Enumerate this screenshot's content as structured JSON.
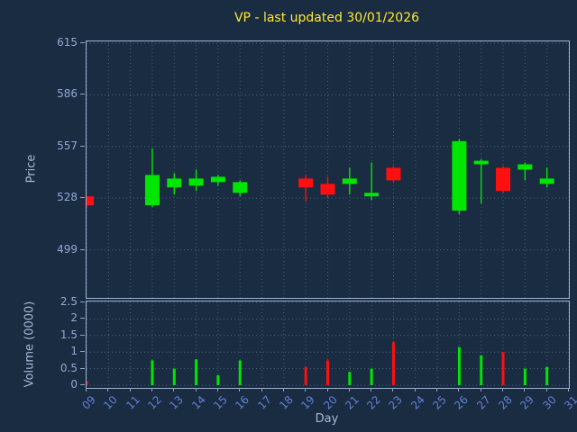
{
  "colors": {
    "background": "#1a2c42",
    "axis_frame": "#9cb2d2",
    "grid": "#47637f",
    "title": "#ffe92e",
    "y_tick_label": "#93a8d6",
    "x_tick_label": "#6080d8",
    "axis_title": "#a7b8d4",
    "candle_up": "#00e600",
    "candle_down": "#ff0f0f"
  },
  "chart_data": {
    "type": "candlestick",
    "title": "VP - last updated 30/01/2026",
    "xlabel": "Day",
    "price_ylabel": "Price",
    "volume_ylabel": "Volume (0000)",
    "x_tick_labels": [
      "09",
      "10",
      "11",
      "12",
      "13",
      "14",
      "15",
      "16",
      "17",
      "18",
      "19",
      "20",
      "21",
      "22",
      "23",
      "24",
      "25",
      "26",
      "27",
      "28",
      "29",
      "30",
      "31"
    ],
    "x_range": [
      9,
      31
    ],
    "price_ticks": [
      499,
      528,
      557,
      586,
      615
    ],
    "price_range": [
      472,
      616
    ],
    "volume_ticks": [
      0,
      0.5,
      1,
      1.5,
      2,
      2.5
    ],
    "volume_tick_labels": [
      "0",
      "0.5",
      "1",
      "1.5",
      "2",
      "2.5"
    ],
    "volume_range": [
      0,
      2.5
    ],
    "grid": "dotted",
    "candles": [
      {
        "day": 9,
        "open": 529,
        "high": 529,
        "low": 523,
        "close": 524,
        "volume": 0.12
      },
      {
        "day": 12,
        "open": 524,
        "high": 556,
        "low": 523,
        "close": 541,
        "volume": 0.75
      },
      {
        "day": 13,
        "open": 534,
        "high": 542,
        "low": 530,
        "close": 539,
        "volume": 0.5
      },
      {
        "day": 14,
        "open": 535,
        "high": 544,
        "low": 532,
        "close": 539,
        "volume": 0.78
      },
      {
        "day": 15,
        "open": 537,
        "high": 541,
        "low": 535,
        "close": 540,
        "volume": 0.3
      },
      {
        "day": 16,
        "open": 531,
        "high": 538,
        "low": 529,
        "close": 537,
        "volume": 0.75
      },
      {
        "day": 19,
        "open": 539,
        "high": 541,
        "low": 526,
        "close": 534,
        "volume": 0.55
      },
      {
        "day": 20,
        "open": 536,
        "high": 540,
        "low": 528,
        "close": 530,
        "volume": 0.75
      },
      {
        "day": 21,
        "open": 536,
        "high": 545,
        "low": 530,
        "close": 539,
        "volume": 0.4
      },
      {
        "day": 22,
        "open": 529,
        "high": 548,
        "low": 527,
        "close": 531,
        "volume": 0.5
      },
      {
        "day": 23,
        "open": 545,
        "high": 546,
        "low": 537,
        "close": 538,
        "volume": 1.3
      },
      {
        "day": 26,
        "open": 521,
        "high": 561,
        "low": 519,
        "close": 560,
        "volume": 1.15
      },
      {
        "day": 27,
        "open": 547,
        "high": 550,
        "low": 525,
        "close": 549,
        "volume": 0.9
      },
      {
        "day": 28,
        "open": 545,
        "high": 546,
        "low": 531,
        "close": 532,
        "volume": 1.0
      },
      {
        "day": 29,
        "open": 544,
        "high": 548,
        "low": 538,
        "close": 547,
        "volume": 0.5
      },
      {
        "day": 30,
        "open": 536,
        "high": 545,
        "low": 534,
        "close": 539,
        "volume": 0.55
      }
    ]
  }
}
